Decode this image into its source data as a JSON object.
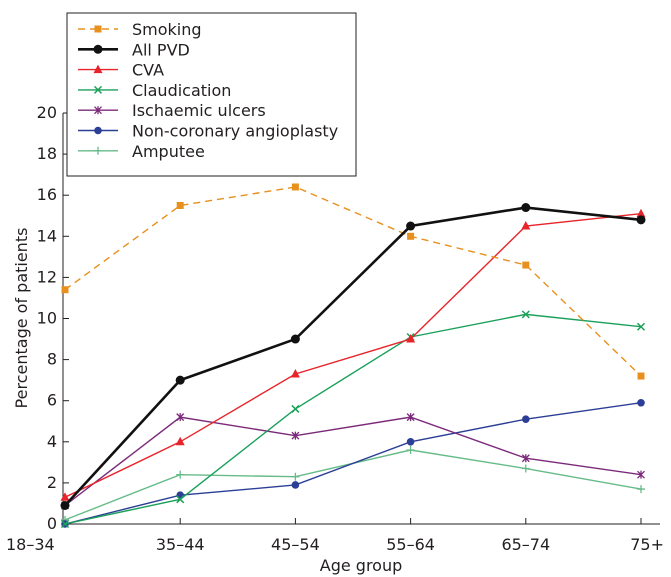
{
  "chart_data": {
    "type": "line",
    "title": "",
    "xlabel": "Age group",
    "ylabel": "Percentage of patients",
    "categories": [
      "18–34",
      "35–44",
      "45–54",
      "55–64",
      "65–74",
      "75+"
    ],
    "ylim": [
      0,
      20
    ],
    "yticks": [
      "0",
      "2",
      "4",
      "6",
      "8",
      "10",
      "12",
      "14",
      "16",
      "18",
      "20"
    ],
    "grid": false,
    "legend_position": "top-left, above plot",
    "series": [
      {
        "name": "Smoking",
        "color": "#e8901e",
        "dash": true,
        "marker": "square",
        "values": [
          11.4,
          15.5,
          16.4,
          14.0,
          12.6,
          7.2
        ]
      },
      {
        "name": "All PVD",
        "color": "#111111",
        "dash": false,
        "marker": "circle",
        "bold": true,
        "values": [
          0.9,
          7.0,
          9.0,
          14.5,
          15.4,
          14.8
        ]
      },
      {
        "name": "CVA",
        "color": "#e8242b",
        "dash": false,
        "marker": "triangle",
        "values": [
          1.3,
          4.0,
          7.3,
          9.0,
          14.5,
          15.1
        ]
      },
      {
        "name": "Claudication",
        "color": "#1aa05a",
        "dash": false,
        "marker": "x",
        "values": [
          0.0,
          1.2,
          5.6,
          9.1,
          10.2,
          9.6
        ]
      },
      {
        "name": "Ischaemic ulcers",
        "color": "#7b2a7a",
        "dash": false,
        "marker": "star",
        "values": [
          0.9,
          5.2,
          4.3,
          5.2,
          3.2,
          2.4
        ]
      },
      {
        "name": "Non-coronary angioplasty",
        "color": "#2c3f96",
        "dash": false,
        "marker": "circle",
        "values": [
          0.0,
          1.4,
          1.9,
          4.0,
          5.1,
          5.9
        ]
      },
      {
        "name": "Amputee",
        "color": "#66bb88",
        "dash": false,
        "marker": "plus",
        "values": [
          0.2,
          2.4,
          2.3,
          3.6,
          2.7,
          1.7
        ]
      }
    ]
  }
}
